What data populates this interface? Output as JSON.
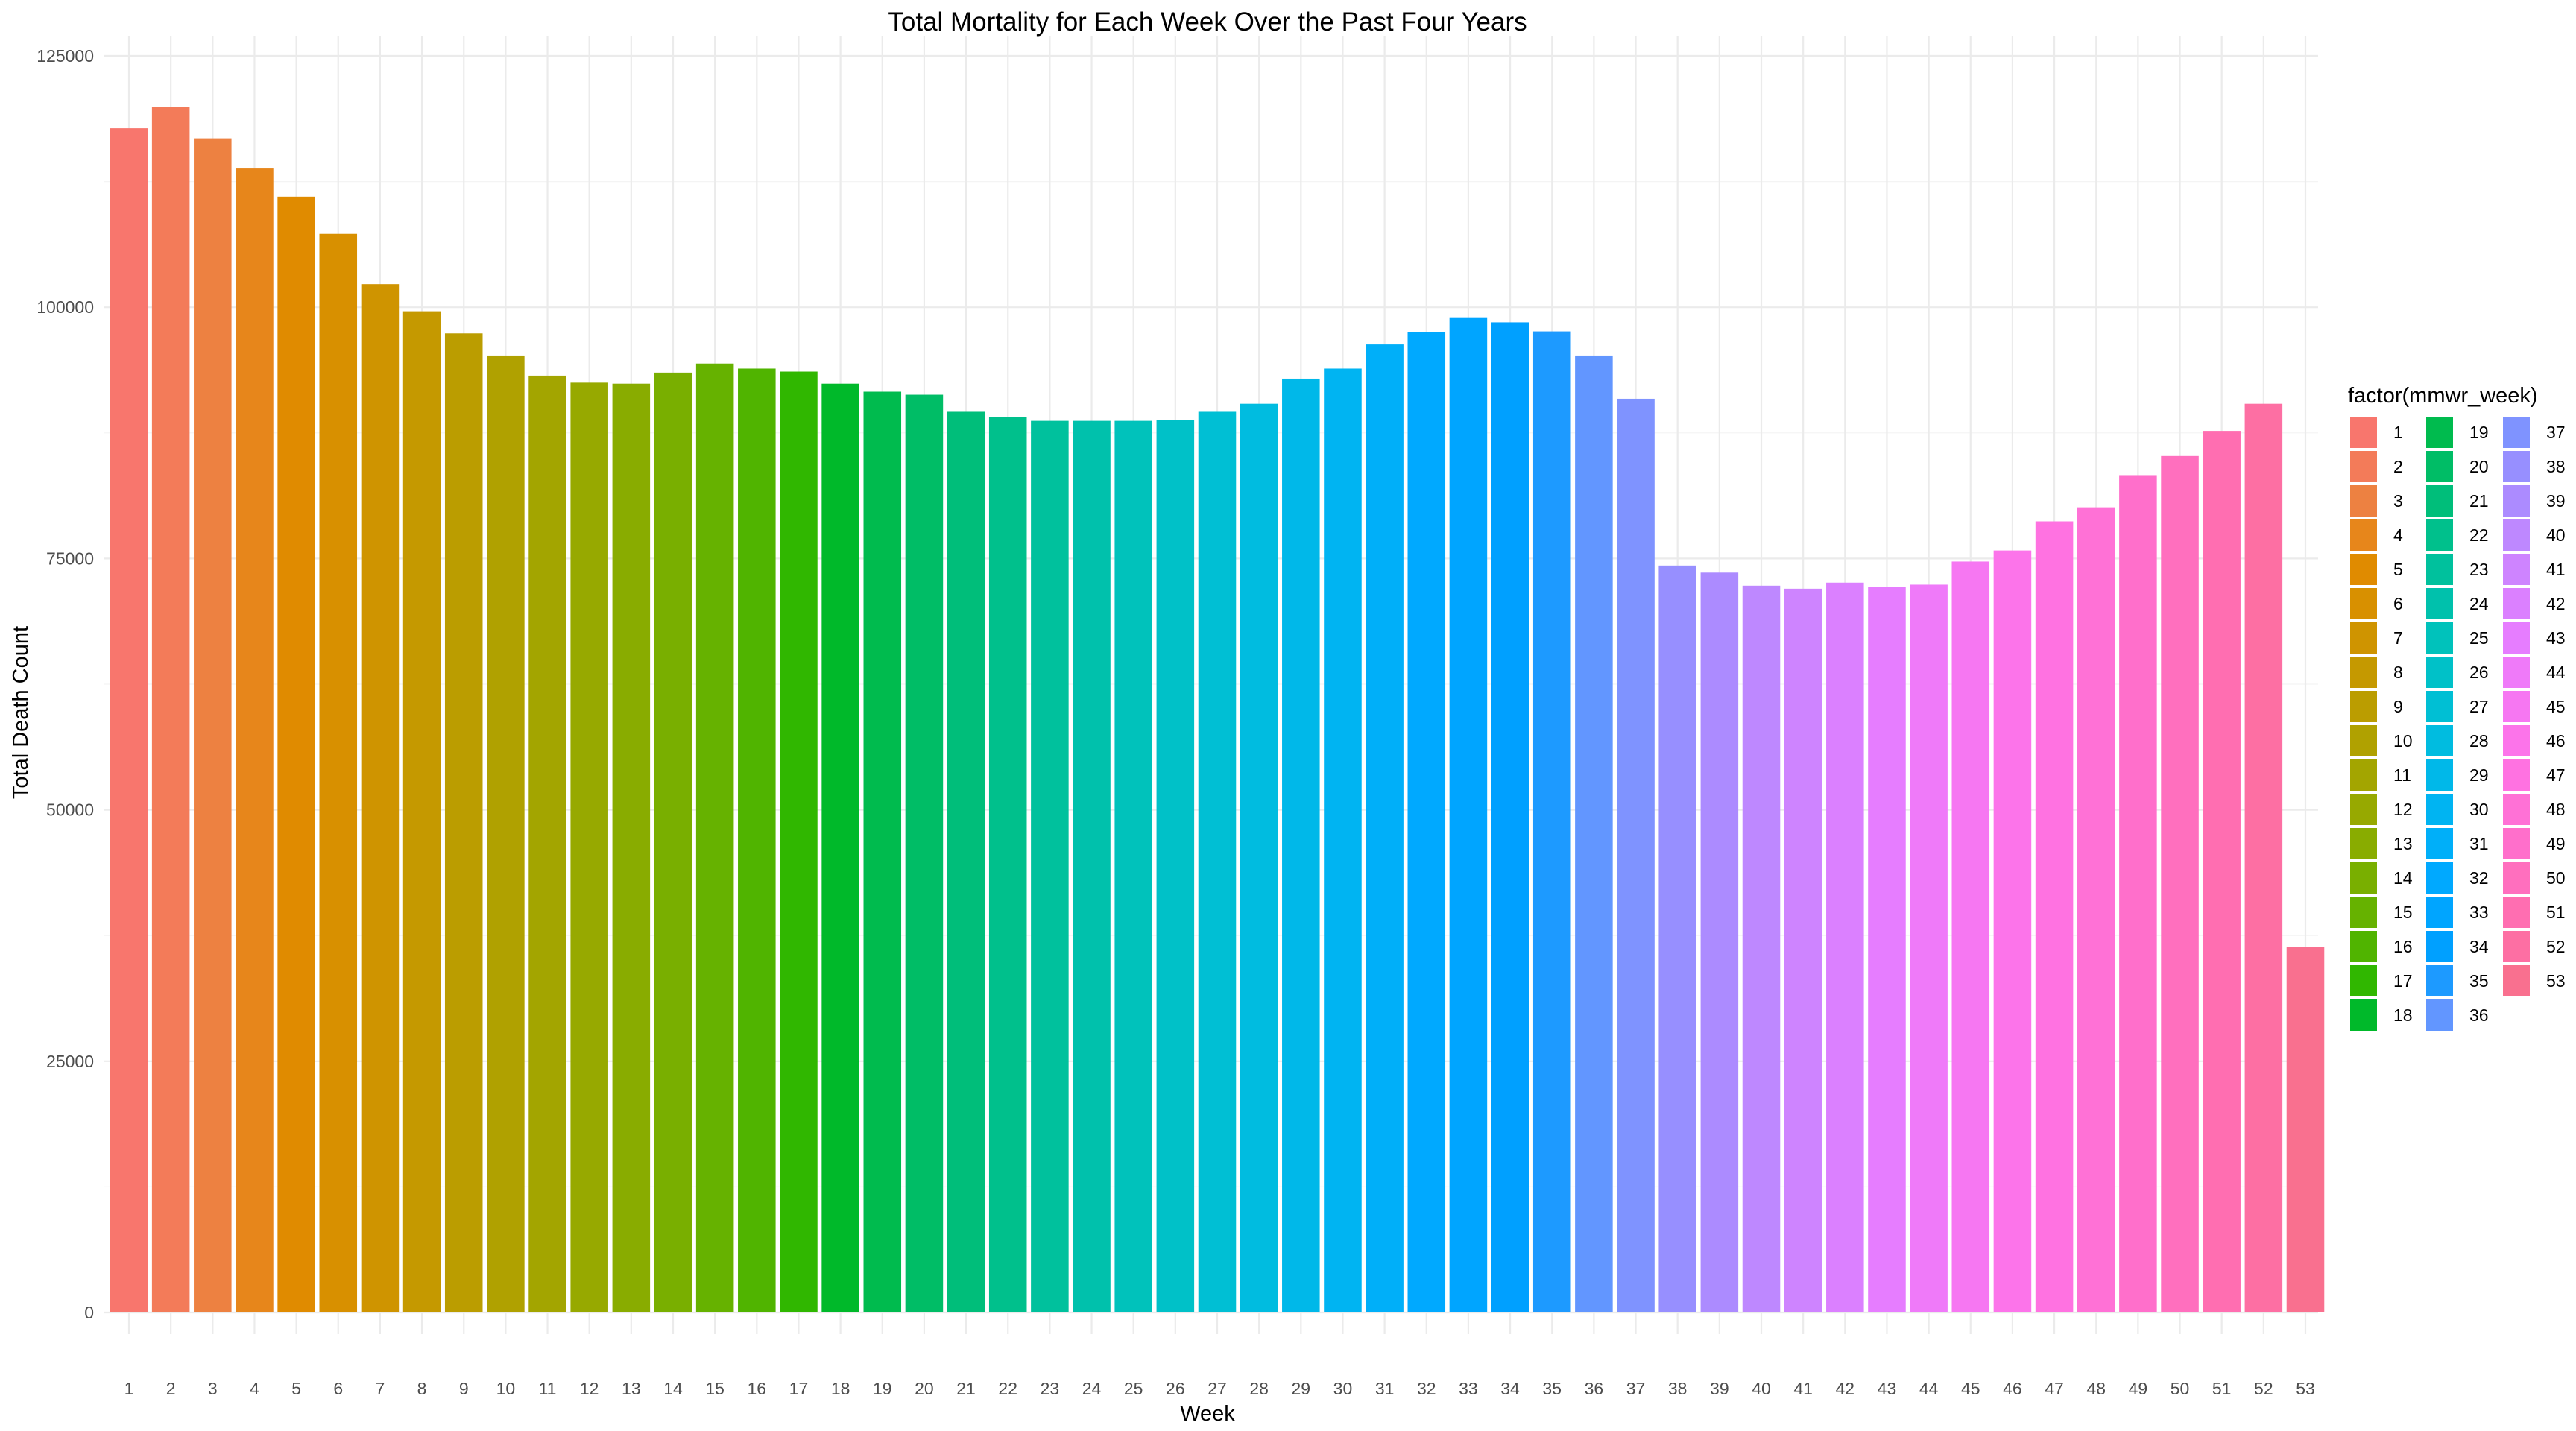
{
  "chart_data": {
    "type": "bar",
    "title": "Total Mortality for Each Week Over the Past Four Years",
    "xlabel": "Week",
    "ylabel": "Total Death Count",
    "ylim": [
      0,
      125000
    ],
    "y_ticks": [
      0,
      25000,
      50000,
      75000,
      100000,
      125000
    ],
    "y_tick_labels": [
      "0",
      "25000",
      "50000",
      "75000",
      "100000",
      "125000"
    ],
    "grid": true,
    "legend": {
      "title": "factor(mmwr_week)",
      "position": "right",
      "columns": 3
    },
    "categories": [
      "1",
      "2",
      "3",
      "4",
      "5",
      "6",
      "7",
      "8",
      "9",
      "10",
      "11",
      "12",
      "13",
      "14",
      "15",
      "16",
      "17",
      "18",
      "19",
      "20",
      "21",
      "22",
      "23",
      "24",
      "25",
      "26",
      "27",
      "28",
      "29",
      "30",
      "31",
      "32",
      "33",
      "34",
      "35",
      "36",
      "37",
      "38",
      "39",
      "40",
      "41",
      "42",
      "43",
      "44",
      "45",
      "46",
      "47",
      "48",
      "49",
      "50",
      "51",
      "52",
      "53"
    ],
    "values": [
      117800,
      119900,
      116800,
      113800,
      111000,
      107300,
      102300,
      99600,
      97400,
      95200,
      93200,
      92500,
      92400,
      93500,
      94400,
      93900,
      93600,
      92400,
      91600,
      91300,
      89600,
      89100,
      88700,
      88700,
      88700,
      88800,
      89600,
      90400,
      92900,
      93900,
      96300,
      97500,
      99000,
      98500,
      97600,
      95200,
      90900,
      74300,
      73600,
      72300,
      72000,
      72600,
      72200,
      72400,
      74700,
      75800,
      78700,
      80100,
      83300,
      85200,
      87700,
      90400,
      36400
    ],
    "colors": [
      "#F8766D",
      "#F37B59",
      "#ED8141",
      "#E7861B",
      "#E08B00",
      "#D89000",
      "#CF9400",
      "#C59900",
      "#BB9D00",
      "#B0A100",
      "#A3A500",
      "#97A900",
      "#89AC00",
      "#79AF00",
      "#66B200",
      "#50B400",
      "#30B700",
      "#00B92A",
      "#00BB4E",
      "#00BD66",
      "#00BE7A",
      "#00C08C",
      "#00C19D",
      "#00C1AC",
      "#00C2BB",
      "#00C1C8",
      "#00BFD4",
      "#00BCE0",
      "#00B8E9",
      "#00B4F2",
      "#00AFF9",
      "#00A9FF",
      "#00A5FF",
      "#00A0FF",
      "#1D9AFF",
      "#6296FF",
      "#7F93FF",
      "#978FFF",
      "#AC8BFF",
      "#BE88FF",
      "#CE84FF",
      "#DB80FF",
      "#E67DFF",
      "#EF7AF9",
      "#F677F2",
      "#FC74EA",
      "#FF72E1",
      "#FF71D6",
      "#FF6FCB",
      "#FF6FBE",
      "#FF6EB1",
      "#FD6FA3",
      "#F9708F"
    ]
  }
}
